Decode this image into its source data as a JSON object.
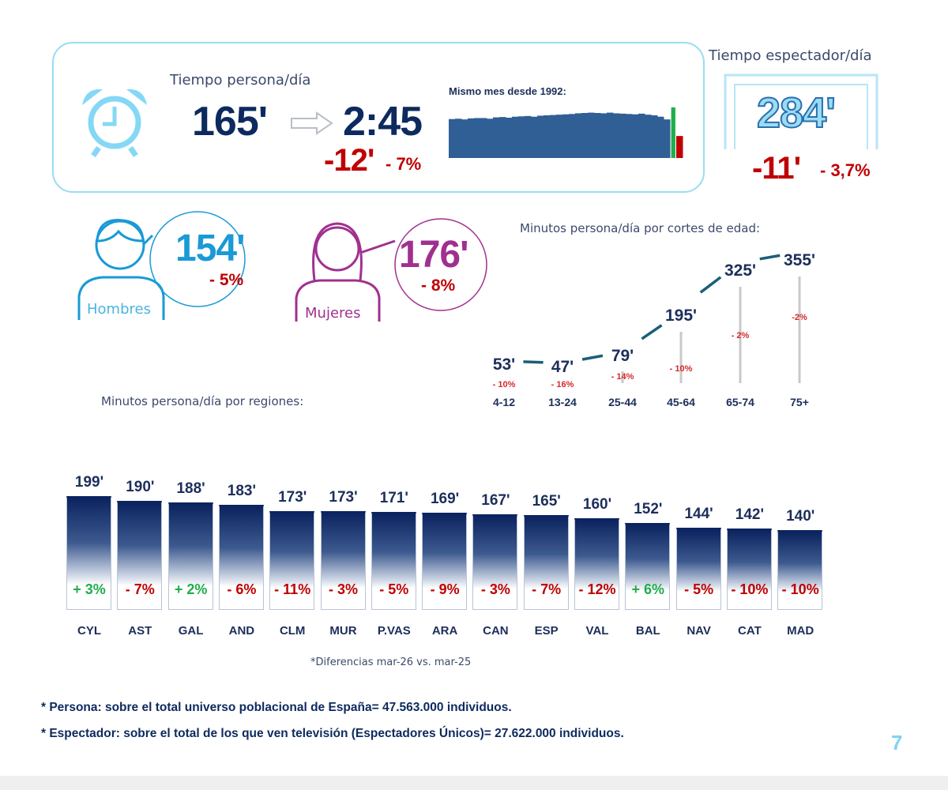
{
  "summary": {
    "person_label": "Tiempo persona/día",
    "person_minutes": "165'",
    "person_hours": "2:45",
    "person_diff_min": "-12'",
    "person_diff_pct": "- 7%",
    "sparkline_title": "Mismo mes desde 1992:",
    "viewer_label": "Tiempo espectador/día",
    "viewer_minutes": "284'",
    "viewer_diff_min": "-11'",
    "viewer_diff_pct": "- 3,7%"
  },
  "gender": {
    "men": {
      "label": "Hombres",
      "value": "154'",
      "pct": "- 5%",
      "color": "#1a9ad6"
    },
    "women": {
      "label": "Mujeres",
      "value": "176'",
      "pct": "- 8%",
      "color": "#a0308f"
    }
  },
  "colors": {
    "navy": "#0d2a5e",
    "red": "#c00000",
    "green": "#1fae4b",
    "light_blue": "#9adcf2",
    "sparkline": "#2f5f95"
  },
  "chart_data": [
    {
      "type": "bar",
      "title": "Mismo mes desde 1992:",
      "note": "sparkline, no axis printed; values estimated",
      "values": [
        215,
        216,
        214,
        217,
        218,
        218,
        216,
        220,
        221,
        219,
        222,
        223,
        224,
        222,
        225,
        226,
        227,
        228,
        229,
        230,
        232,
        233,
        234,
        233,
        232,
        234,
        232,
        231,
        230,
        229,
        231,
        228,
        226,
        222,
        214,
        177,
        165
      ],
      "highlight": [
        {
          "index": 35,
          "color": "#1fae4b"
        },
        {
          "index": 36,
          "color": "#c00000"
        }
      ]
    },
    {
      "type": "line",
      "title": "Minutos persona/día por cortes de edad:",
      "categories": [
        "4-12",
        "13-24",
        "25-44",
        "45-64",
        "65-74",
        "75+"
      ],
      "values": [
        53,
        47,
        79,
        195,
        325,
        355
      ],
      "value_labels": [
        "53'",
        "47'",
        "79'",
        "195'",
        "325'",
        "355'"
      ],
      "pct_labels": [
        "- 10%",
        "- 16%",
        "- 14%",
        "- 10%",
        "- 2%",
        "-2%"
      ]
    },
    {
      "type": "bar",
      "title": "Minutos persona/día por regiones:",
      "categories": [
        "CYL",
        "AST",
        "GAL",
        "AND",
        "CLM",
        "MUR",
        "P.VAS",
        "ARA",
        "CAN",
        "ESP",
        "VAL",
        "BAL",
        "NAV",
        "CAT",
        "MAD"
      ],
      "values": [
        199,
        190,
        188,
        183,
        173,
        173,
        171,
        169,
        167,
        165,
        160,
        152,
        144,
        142,
        140
      ],
      "value_labels": [
        "199'",
        "190'",
        "188'",
        "183'",
        "173'",
        "173'",
        "171'",
        "169'",
        "167'",
        "165'",
        "160'",
        "152'",
        "144'",
        "142'",
        "140'"
      ],
      "pct_labels": [
        "+ 3%",
        "- 7%",
        "+ 2%",
        "- 6%",
        "- 11%",
        "- 3%",
        "- 5%",
        "- 9%",
        "- 3%",
        "- 7%",
        "- 12%",
        "+ 6%",
        "- 5%",
        "- 10%",
        "- 10%"
      ],
      "note": "*Diferencias  mar-26 vs. mar-25"
    }
  ],
  "footnotes": [
    "* Persona: sobre el total universo poblacional de España= 47.563.000 individuos.",
    "* Espectador: sobre el total de los que ven televisión (Espectadores Únicos)= 27.622.000 individuos."
  ],
  "page_number": "7"
}
